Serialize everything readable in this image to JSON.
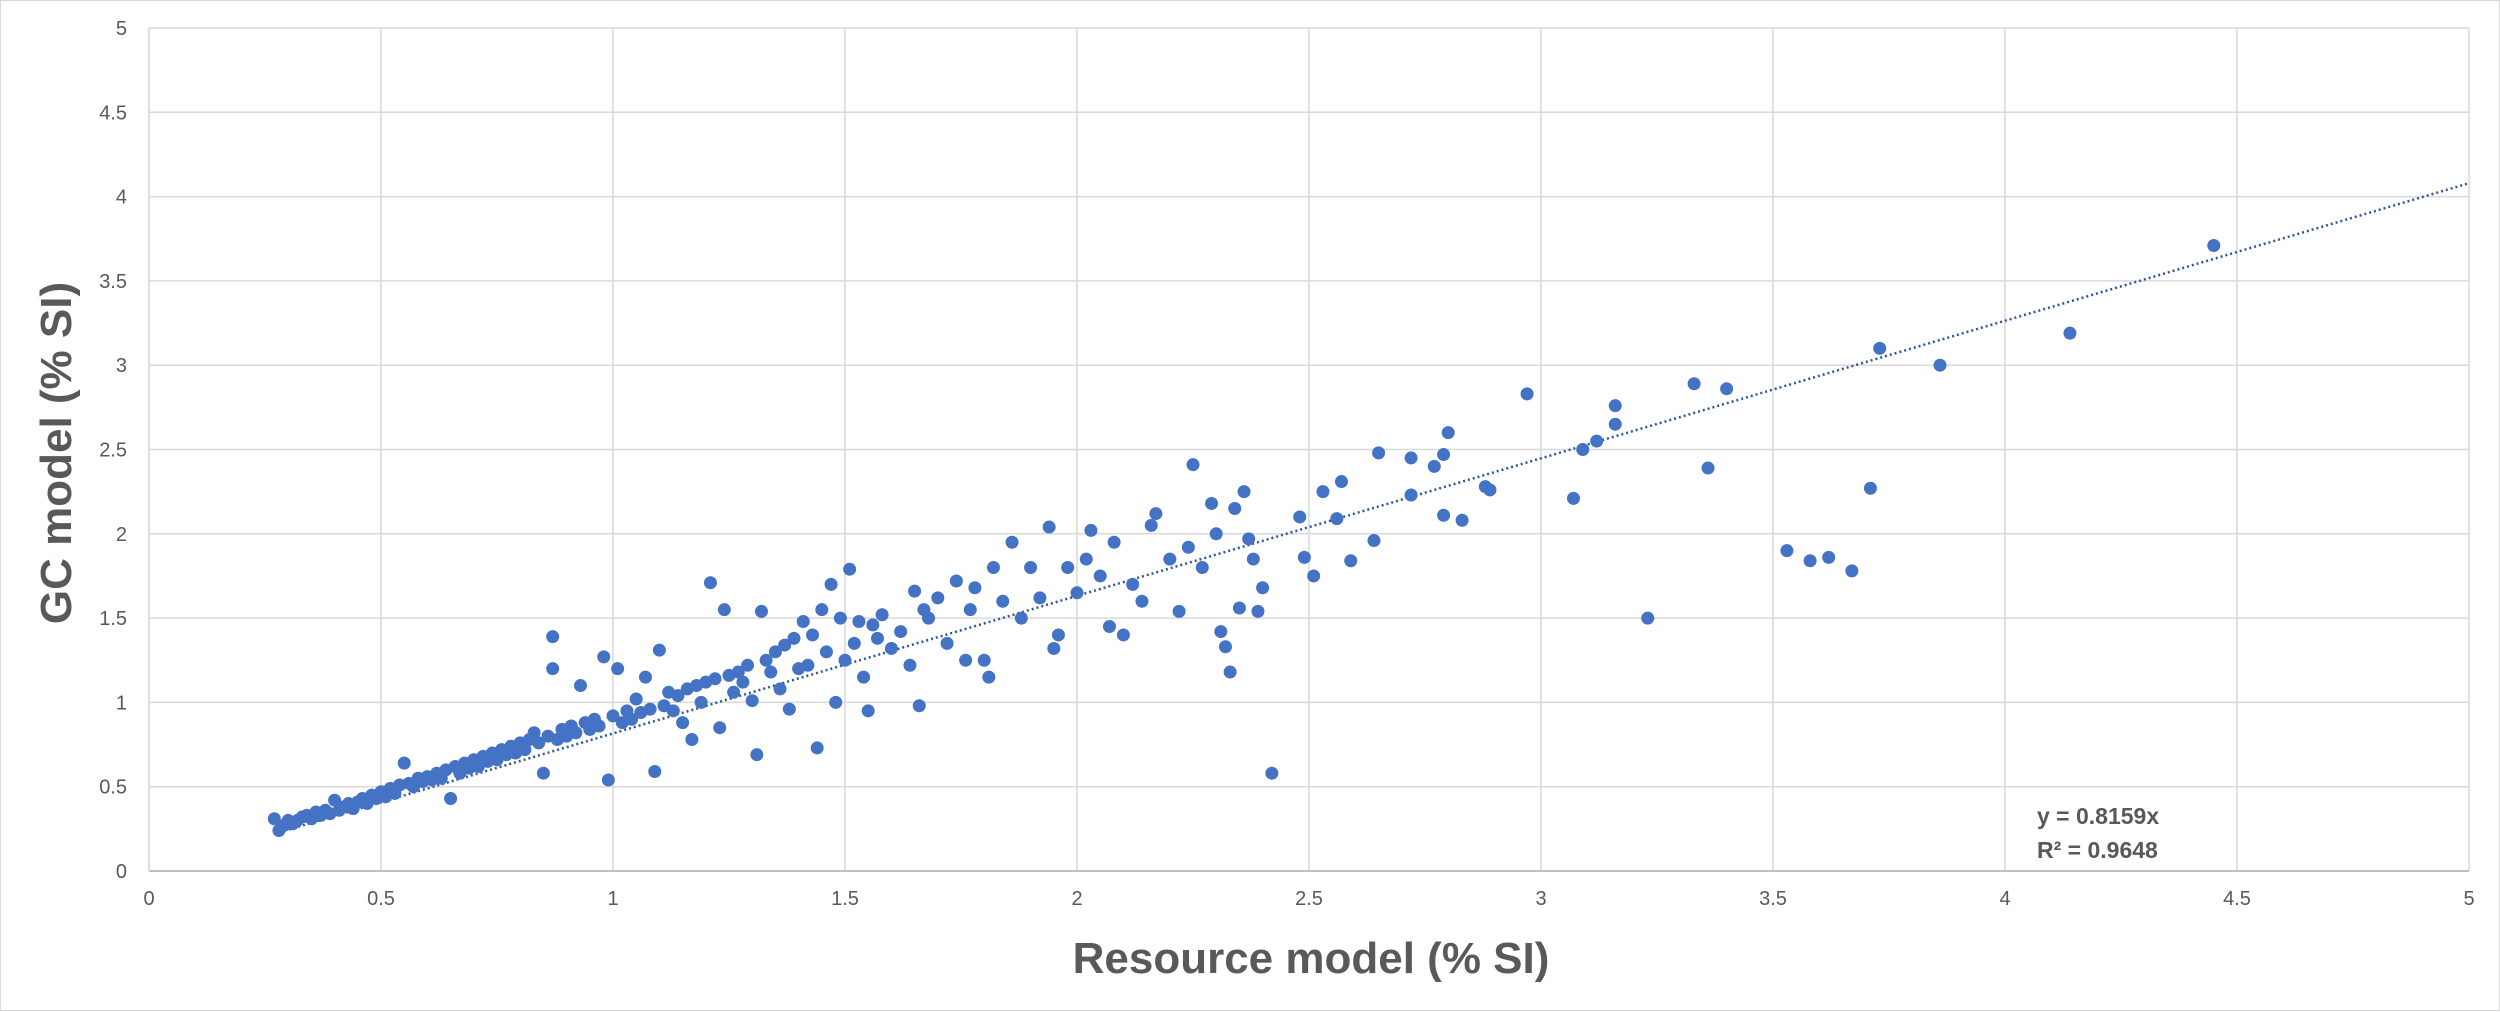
{
  "chart_data": {
    "type": "scatter",
    "title": "",
    "xlabel": "Resource model (% SI)",
    "ylabel": "GC model (% SI)",
    "xlim": [
      0,
      5
    ],
    "ylim": [
      0,
      5
    ],
    "x_ticks": [
      "0",
      "0.5",
      "1",
      "1.5",
      "2",
      "2.5",
      "3",
      "3.5",
      "4",
      "4.5",
      "5"
    ],
    "y_ticks": [
      "0",
      "0.5",
      "1",
      "1.5",
      "2",
      "2.5",
      "3",
      "3.5",
      "4",
      "4.5",
      "5"
    ],
    "grid": true,
    "marker_color": "#4472C4",
    "trendline": {
      "type": "linear-through-origin",
      "slope": 0.8159,
      "style": "dotted",
      "color": "#2F5597"
    },
    "equation": {
      "line1": "y = 0.8159x",
      "line2": "R² = 0.9648"
    },
    "series": [
      {
        "points": [
          [
            0.27,
            0.31
          ],
          [
            0.28,
            0.24
          ],
          [
            0.29,
            0.27
          ],
          [
            0.3,
            0.3
          ],
          [
            0.31,
            0.28
          ],
          [
            0.32,
            0.3
          ],
          [
            0.33,
            0.32
          ],
          [
            0.34,
            0.33
          ],
          [
            0.35,
            0.31
          ],
          [
            0.36,
            0.35
          ],
          [
            0.37,
            0.33
          ],
          [
            0.38,
            0.36
          ],
          [
            0.39,
            0.34
          ],
          [
            0.4,
            0.42
          ],
          [
            0.41,
            0.36
          ],
          [
            0.42,
            0.38
          ],
          [
            0.43,
            0.4
          ],
          [
            0.44,
            0.37
          ],
          [
            0.45,
            0.41
          ],
          [
            0.46,
            0.43
          ],
          [
            0.47,
            0.4
          ],
          [
            0.48,
            0.45
          ],
          [
            0.49,
            0.43
          ],
          [
            0.5,
            0.47
          ],
          [
            0.51,
            0.44
          ],
          [
            0.52,
            0.49
          ],
          [
            0.53,
            0.46
          ],
          [
            0.54,
            0.51
          ],
          [
            0.55,
            0.64
          ],
          [
            0.56,
            0.52
          ],
          [
            0.57,
            0.5
          ],
          [
            0.58,
            0.55
          ],
          [
            0.59,
            0.53
          ],
          [
            0.6,
            0.56
          ],
          [
            0.61,
            0.54
          ],
          [
            0.62,
            0.58
          ],
          [
            0.63,
            0.55
          ],
          [
            0.64,
            0.6
          ],
          [
            0.65,
            0.43
          ],
          [
            0.66,
            0.62
          ],
          [
            0.67,
            0.58
          ],
          [
            0.68,
            0.64
          ],
          [
            0.69,
            0.61
          ],
          [
            0.7,
            0.66
          ],
          [
            0.71,
            0.62
          ],
          [
            0.72,
            0.68
          ],
          [
            0.73,
            0.65
          ],
          [
            0.74,
            0.7
          ],
          [
            0.75,
            0.66
          ],
          [
            0.76,
            0.72
          ],
          [
            0.77,
            0.69
          ],
          [
            0.78,
            0.74
          ],
          [
            0.79,
            0.7
          ],
          [
            0.8,
            0.76
          ],
          [
            0.81,
            0.72
          ],
          [
            0.82,
            0.78
          ],
          [
            0.83,
            0.82
          ],
          [
            0.84,
            0.76
          ],
          [
            0.85,
            0.58
          ],
          [
            0.86,
            0.8
          ],
          [
            0.87,
            1.39
          ],
          [
            0.87,
            1.2
          ],
          [
            0.88,
            0.78
          ],
          [
            0.89,
            0.84
          ],
          [
            0.9,
            0.8
          ],
          [
            0.91,
            0.86
          ],
          [
            0.92,
            0.82
          ],
          [
            0.93,
            1.1
          ],
          [
            0.94,
            0.88
          ],
          [
            0.95,
            0.84
          ],
          [
            0.96,
            0.9
          ],
          [
            0.97,
            0.86
          ],
          [
            0.98,
            1.27
          ],
          [
            0.99,
            0.54
          ],
          [
            1.0,
            0.92
          ],
          [
            1.01,
            1.2
          ],
          [
            1.02,
            0.88
          ],
          [
            1.03,
            0.95
          ],
          [
            1.04,
            0.9
          ],
          [
            1.05,
            1.02
          ],
          [
            1.06,
            0.94
          ],
          [
            1.07,
            1.15
          ],
          [
            1.08,
            0.96
          ],
          [
            1.09,
            0.59
          ],
          [
            1.1,
            1.31
          ],
          [
            1.11,
            0.98
          ],
          [
            1.12,
            1.06
          ],
          [
            1.13,
            0.95
          ],
          [
            1.14,
            1.04
          ],
          [
            1.15,
            0.88
          ],
          [
            1.16,
            1.08
          ],
          [
            1.17,
            0.78
          ],
          [
            1.18,
            1.1
          ],
          [
            1.19,
            1.0
          ],
          [
            1.2,
            1.12
          ],
          [
            1.21,
            1.71
          ],
          [
            1.22,
            1.14
          ],
          [
            1.23,
            0.85
          ],
          [
            1.24,
            1.55
          ],
          [
            1.25,
            1.16
          ],
          [
            1.26,
            1.06
          ],
          [
            1.27,
            1.18
          ],
          [
            1.28,
            1.12
          ],
          [
            1.29,
            1.22
          ],
          [
            1.3,
            1.01
          ],
          [
            1.31,
            0.69
          ],
          [
            1.32,
            1.54
          ],
          [
            1.33,
            1.25
          ],
          [
            1.34,
            1.18
          ],
          [
            1.35,
            1.3
          ],
          [
            1.36,
            1.08
          ],
          [
            1.37,
            1.34
          ],
          [
            1.38,
            0.96
          ],
          [
            1.39,
            1.38
          ],
          [
            1.4,
            1.2
          ],
          [
            1.41,
            1.48
          ],
          [
            1.42,
            1.22
          ],
          [
            1.43,
            1.4
          ],
          [
            1.44,
            0.73
          ],
          [
            1.45,
            1.55
          ],
          [
            1.46,
            1.3
          ],
          [
            1.47,
            1.7
          ],
          [
            1.48,
            1.0
          ],
          [
            1.49,
            1.5
          ],
          [
            1.5,
            1.25
          ],
          [
            1.51,
            1.79
          ],
          [
            1.52,
            1.35
          ],
          [
            1.53,
            1.48
          ],
          [
            1.54,
            1.15
          ],
          [
            1.55,
            0.95
          ],
          [
            1.56,
            1.46
          ],
          [
            1.57,
            1.38
          ],
          [
            1.58,
            1.52
          ],
          [
            1.6,
            1.32
          ],
          [
            1.62,
            1.42
          ],
          [
            1.64,
            1.22
          ],
          [
            1.65,
            1.66
          ],
          [
            1.66,
            0.98
          ],
          [
            1.67,
            1.55
          ],
          [
            1.68,
            1.5
          ],
          [
            1.7,
            1.62
          ],
          [
            1.72,
            1.35
          ],
          [
            1.74,
            1.72
          ],
          [
            1.76,
            1.25
          ],
          [
            1.77,
            1.55
          ],
          [
            1.78,
            1.68
          ],
          [
            1.8,
            1.25
          ],
          [
            1.81,
            1.15
          ],
          [
            1.82,
            1.8
          ],
          [
            1.84,
            1.6
          ],
          [
            1.86,
            1.95
          ],
          [
            1.88,
            1.5
          ],
          [
            1.9,
            1.8
          ],
          [
            1.92,
            1.62
          ],
          [
            1.94,
            2.04
          ],
          [
            1.95,
            1.32
          ],
          [
            1.96,
            1.4
          ],
          [
            1.98,
            1.8
          ],
          [
            2.0,
            1.65
          ],
          [
            2.02,
            1.85
          ],
          [
            2.03,
            2.02
          ],
          [
            2.05,
            1.75
          ],
          [
            2.07,
            1.45
          ],
          [
            2.08,
            1.95
          ],
          [
            2.1,
            1.4
          ],
          [
            2.12,
            1.7
          ],
          [
            2.14,
            1.6
          ],
          [
            2.16,
            2.05
          ],
          [
            2.17,
            2.12
          ],
          [
            2.2,
            1.85
          ],
          [
            2.22,
            1.54
          ],
          [
            2.24,
            1.92
          ],
          [
            2.25,
            2.41
          ],
          [
            2.27,
            1.8
          ],
          [
            2.29,
            2.18
          ],
          [
            2.3,
            2.0
          ],
          [
            2.31,
            1.42
          ],
          [
            2.32,
            1.33
          ],
          [
            2.33,
            1.18
          ],
          [
            2.34,
            2.15
          ],
          [
            2.35,
            1.56
          ],
          [
            2.36,
            2.25
          ],
          [
            2.37,
            1.97
          ],
          [
            2.38,
            1.85
          ],
          [
            2.39,
            1.54
          ],
          [
            2.4,
            1.68
          ],
          [
            2.42,
            0.58
          ],
          [
            2.48,
            2.1
          ],
          [
            2.49,
            1.86
          ],
          [
            2.51,
            1.75
          ],
          [
            2.53,
            2.25
          ],
          [
            2.56,
            2.09
          ],
          [
            2.57,
            2.31
          ],
          [
            2.59,
            1.84
          ],
          [
            2.64,
            1.96
          ],
          [
            2.65,
            2.48
          ],
          [
            2.72,
            2.23
          ],
          [
            2.72,
            2.45
          ],
          [
            2.77,
            2.4
          ],
          [
            2.79,
            2.47
          ],
          [
            2.79,
            2.11
          ],
          [
            2.8,
            2.6
          ],
          [
            2.83,
            2.08
          ],
          [
            2.88,
            2.28
          ],
          [
            2.89,
            2.26
          ],
          [
            2.97,
            2.83
          ],
          [
            3.07,
            2.21
          ],
          [
            3.09,
            2.5
          ],
          [
            3.12,
            2.55
          ],
          [
            3.16,
            2.76
          ],
          [
            3.16,
            2.65
          ],
          [
            3.23,
            1.5
          ],
          [
            3.33,
            2.89
          ],
          [
            3.36,
            2.39
          ],
          [
            3.4,
            2.86
          ],
          [
            3.53,
            1.9
          ],
          [
            3.58,
            1.84
          ],
          [
            3.62,
            1.86
          ],
          [
            3.67,
            1.78
          ],
          [
            3.71,
            2.27
          ],
          [
            3.73,
            3.1
          ],
          [
            3.86,
            3.0
          ],
          [
            4.14,
            3.19
          ],
          [
            4.45,
            3.71
          ]
        ]
      }
    ]
  }
}
